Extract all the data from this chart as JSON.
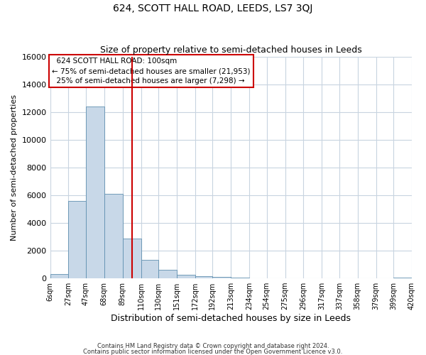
{
  "title": "624, SCOTT HALL ROAD, LEEDS, LS7 3QJ",
  "subtitle": "Size of property relative to semi-detached houses in Leeds",
  "xlabel": "Distribution of semi-detached houses by size in Leeds",
  "ylabel": "Number of semi-detached properties",
  "bin_edges": [
    6,
    27,
    47,
    68,
    89,
    110,
    130,
    151,
    172,
    192,
    213,
    234,
    254,
    275,
    296,
    317,
    337,
    358,
    379,
    399,
    420
  ],
  "bin_counts": [
    300,
    5600,
    12400,
    6100,
    2850,
    1350,
    600,
    250,
    150,
    100,
    60,
    0,
    0,
    0,
    0,
    0,
    0,
    0,
    0,
    50
  ],
  "bar_color": "#c8d8e8",
  "bar_edge_color": "#6090b0",
  "vline_x": 100,
  "vline_color": "#cc0000",
  "ylim": [
    0,
    16000
  ],
  "yticks": [
    0,
    2000,
    4000,
    6000,
    8000,
    10000,
    12000,
    14000,
    16000
  ],
  "xtick_labels": [
    "6sqm",
    "27sqm",
    "47sqm",
    "68sqm",
    "89sqm",
    "110sqm",
    "130sqm",
    "151sqm",
    "172sqm",
    "192sqm",
    "213sqm",
    "234sqm",
    "254sqm",
    "275sqm",
    "296sqm",
    "317sqm",
    "337sqm",
    "358sqm",
    "379sqm",
    "399sqm",
    "420sqm"
  ],
  "annotation_title": "624 SCOTT HALL ROAD: 100sqm",
  "annotation_line1": "← 75% of semi-detached houses are smaller (21,953)",
  "annotation_line2": "25% of semi-detached houses are larger (7,298) →",
  "annotation_box_color": "#ffffff",
  "annotation_box_edge": "#cc0000",
  "footer1": "Contains HM Land Registry data © Crown copyright and database right 2024.",
  "footer2": "Contains public sector information licensed under the Open Government Licence v3.0.",
  "background_color": "#ffffff",
  "grid_color": "#c8d4e0"
}
